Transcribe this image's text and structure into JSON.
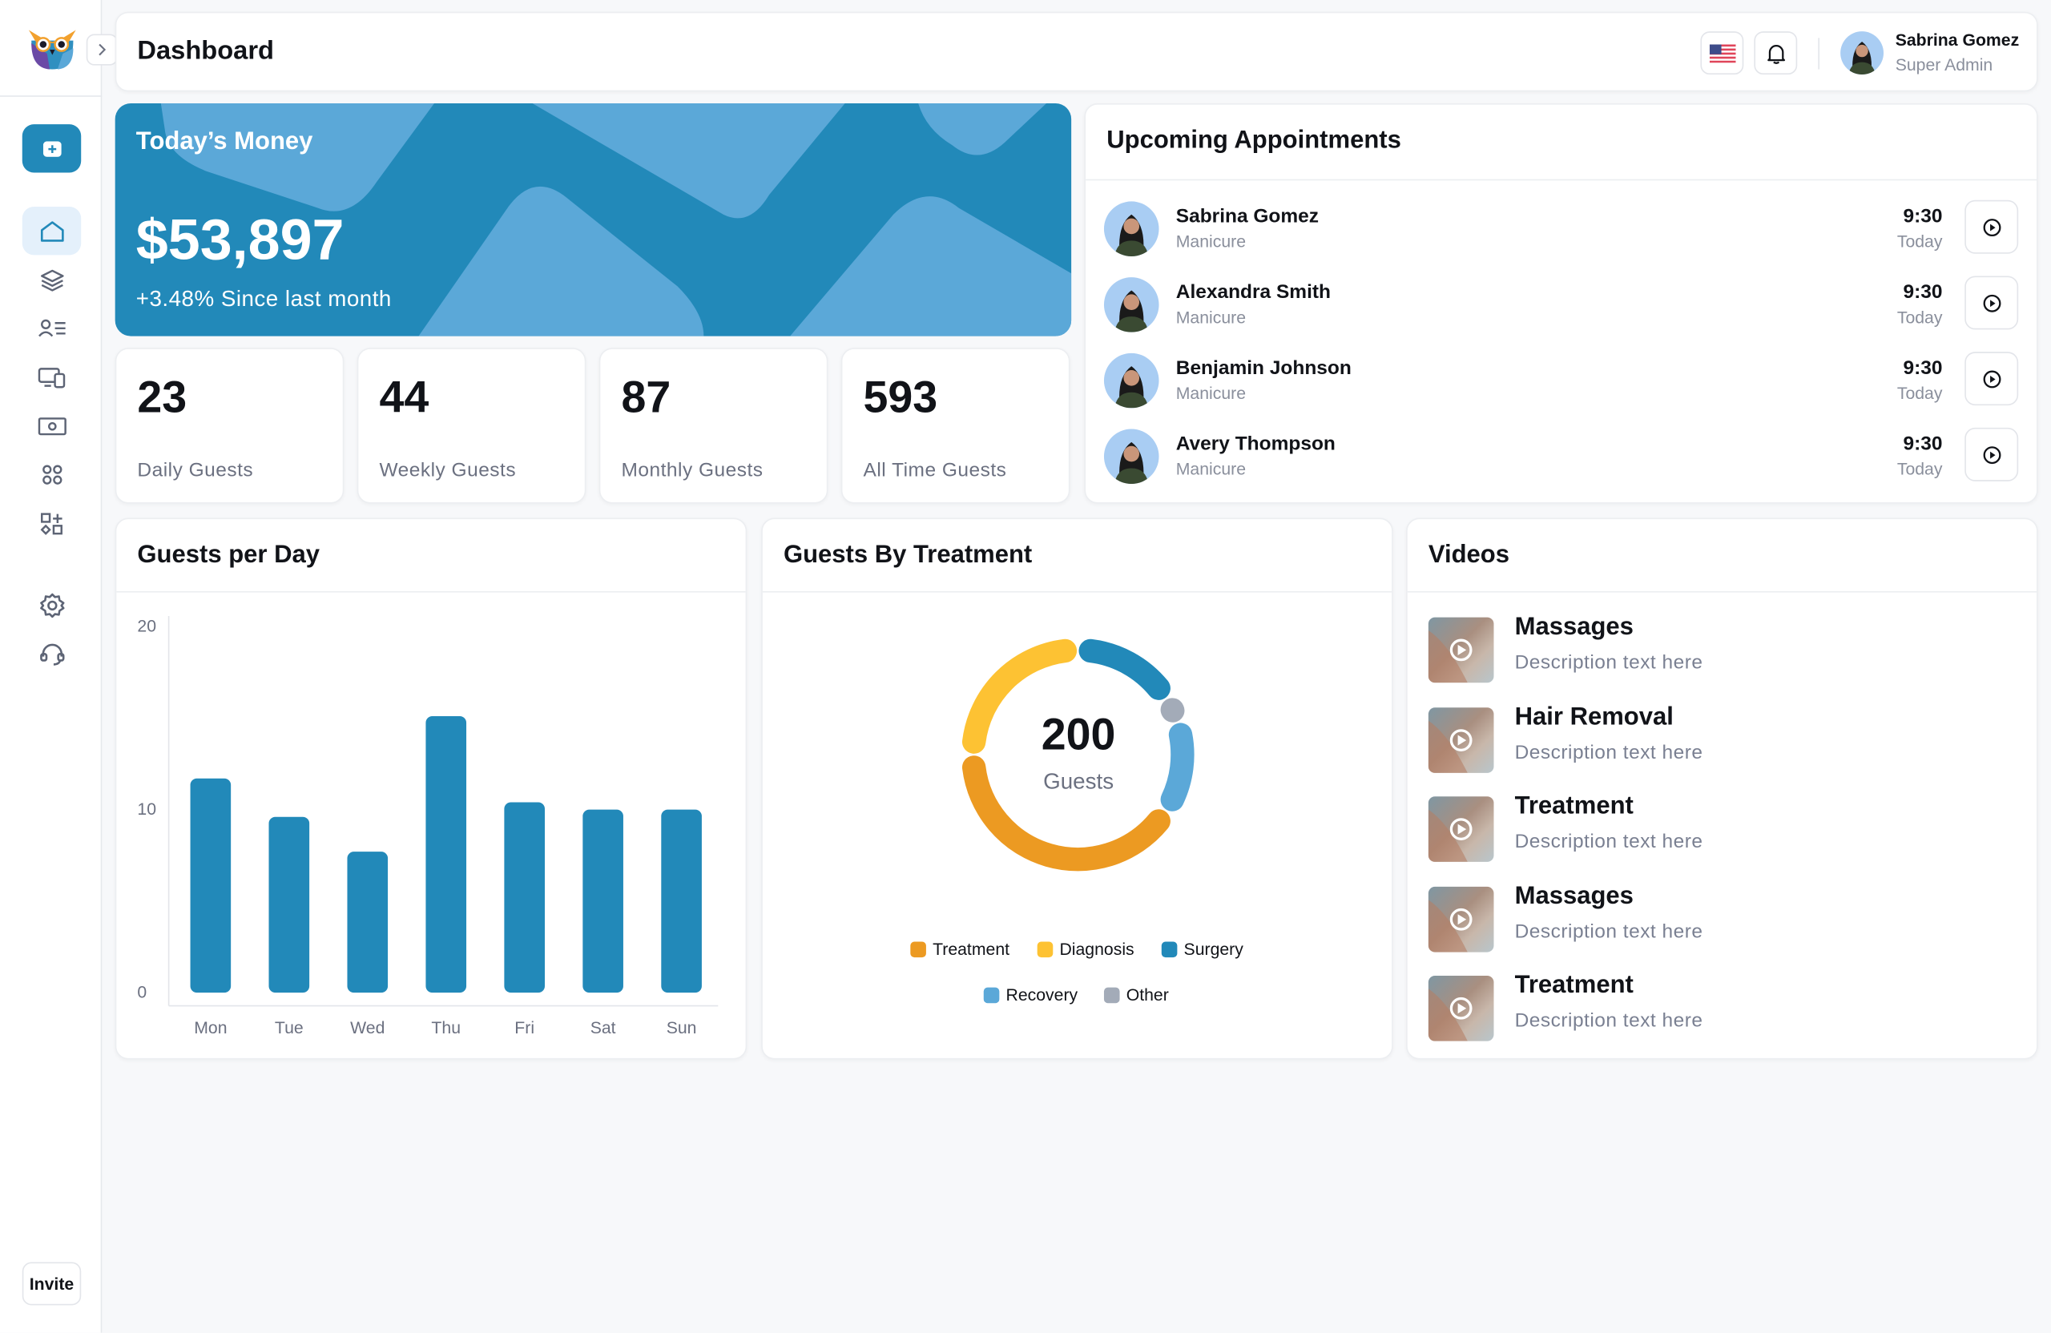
{
  "header": {
    "title": "Dashboard",
    "user": {
      "name": "Sabrina Gomez",
      "role": "Super Admin"
    }
  },
  "sidebar": {
    "items": [
      {
        "icon": "home-icon",
        "active": true
      },
      {
        "icon": "layers-icon"
      },
      {
        "icon": "user-list-icon"
      },
      {
        "icon": "devices-icon"
      },
      {
        "icon": "money-icon"
      },
      {
        "icon": "apps-icon"
      },
      {
        "icon": "add-widget-icon"
      },
      {
        "icon": "settings-icon"
      },
      {
        "icon": "headset-icon"
      }
    ],
    "invite_label": "Invite"
  },
  "money": {
    "title": "Today’s Money",
    "amount": "$53,897",
    "change": "+3.48% Since last month"
  },
  "stats": [
    {
      "value": "23",
      "label": "Daily Guests"
    },
    {
      "value": "44",
      "label": "Weekly Guests"
    },
    {
      "value": "87",
      "label": "Monthly Guests"
    },
    {
      "value": "593",
      "label": "All Time Guests"
    }
  ],
  "appointments": {
    "title": "Upcoming Appointments",
    "items": [
      {
        "name": "Sabrina Gomez",
        "service": "Manicure",
        "time": "9:30",
        "day": "Today"
      },
      {
        "name": "Alexandra Smith",
        "service": "Manicure",
        "time": "9:30",
        "day": "Today"
      },
      {
        "name": "Benjamin Johnson",
        "service": "Manicure",
        "time": "9:30",
        "day": "Today"
      },
      {
        "name": "Avery Thompson",
        "service": "Manicure",
        "time": "9:30",
        "day": "Today"
      }
    ]
  },
  "guests_per_day": {
    "title": "Guests per Day"
  },
  "guests_by_treatment": {
    "title": "Guests By Treatment",
    "total": "200",
    "total_label": "Guests"
  },
  "videos": {
    "title": "Videos",
    "items": [
      {
        "title": "Massages",
        "description": "Description text here"
      },
      {
        "title": "Hair Removal",
        "description": "Description text here"
      },
      {
        "title": "Treatment",
        "description": "Description text here"
      },
      {
        "title": "Massages",
        "description": "Description text here"
      },
      {
        "title": "Treatment",
        "description": "Description text here"
      }
    ]
  },
  "colors": {
    "brand": "#2289b9",
    "brand_light": "#5ba8d8"
  },
  "chart_data": [
    {
      "type": "bar",
      "title": "Guests per Day",
      "categories": [
        "Mon",
        "Tue",
        "Wed",
        "Thu",
        "Fri",
        "Sat",
        "Sun"
      ],
      "values": [
        11.7,
        9.6,
        7.7,
        15.1,
        10.4,
        10,
        10
      ],
      "yticks": [
        "0",
        "10",
        "20"
      ],
      "ylim": [
        0,
        20
      ],
      "color": "#2289b9",
      "xlabel": "",
      "ylabel": ""
    },
    {
      "type": "pie",
      "title": "Guests By Treatment",
      "series": [
        {
          "name": "Surgery",
          "value": 32,
          "color": "#2289b9"
        },
        {
          "name": "Other",
          "value": 8,
          "color": "#a3abb8"
        },
        {
          "name": "Recovery",
          "value": 28,
          "color": "#5ba8d8"
        },
        {
          "name": "Treatment",
          "value": 82,
          "color": "#ec9a22"
        },
        {
          "name": "Diagnosis",
          "value": 50,
          "color": "#fdc233"
        }
      ],
      "legend": [
        "Treatment",
        "Diagnosis",
        "Surgery",
        "Recovery",
        "Other"
      ],
      "legend_placement": "bottom"
    }
  ]
}
